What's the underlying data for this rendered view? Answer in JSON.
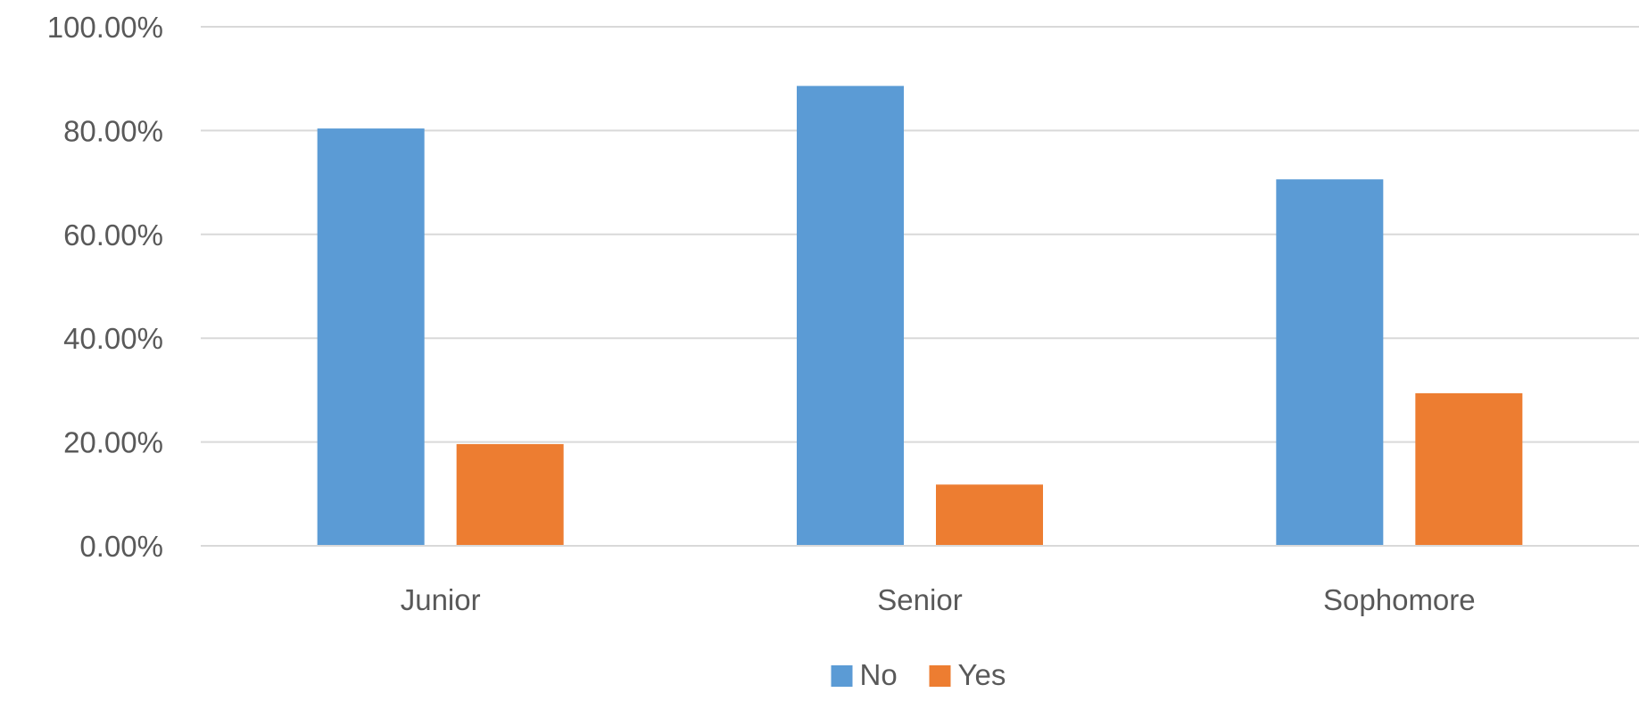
{
  "chart_data": {
    "type": "bar",
    "title": "",
    "xlabel": "",
    "ylabel": "",
    "categories": [
      "Junior",
      "Senior",
      "Sophomore"
    ],
    "series": [
      {
        "name": "No",
        "color": "#5b9bd5",
        "values": [
          80.4,
          88.6,
          70.6
        ]
      },
      {
        "name": "Yes",
        "color": "#ed7d31",
        "values": [
          19.6,
          11.8,
          29.4
        ]
      }
    ],
    "ylim": [
      0,
      100
    ],
    "yticks": [
      "0.00%",
      "20.00%",
      "40.00%",
      "60.00%",
      "80.00%",
      "100.00%"
    ],
    "ytick_values": [
      0,
      20,
      40,
      60,
      80,
      100
    ],
    "grid": true,
    "legend_position": "bottom"
  }
}
